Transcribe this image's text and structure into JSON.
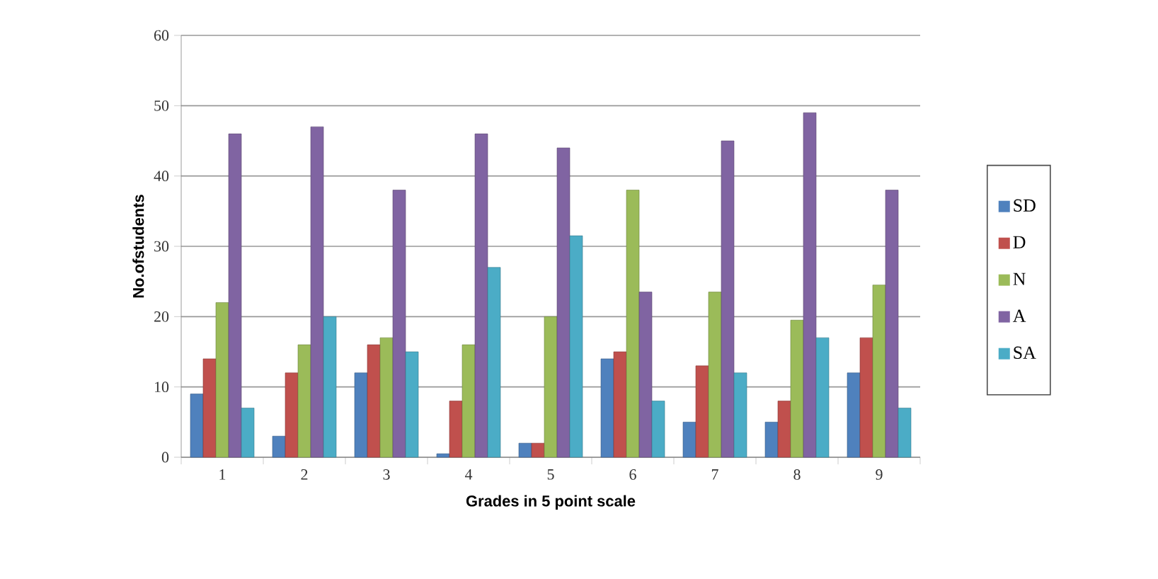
{
  "chart_data": {
    "type": "bar",
    "xlabel": "Grades in 5 point scale",
    "ylabel": "No.ofstudents",
    "categories": [
      "1",
      "2",
      "3",
      "4",
      "5",
      "6",
      "7",
      "8",
      "9"
    ],
    "series": [
      {
        "name": "SD",
        "color": "#4f81bd",
        "values": [
          9,
          3,
          12,
          0.5,
          2,
          14,
          5,
          5,
          12
        ]
      },
      {
        "name": "D",
        "color": "#c0504d",
        "values": [
          14,
          12,
          16,
          8,
          2,
          15,
          13,
          8,
          17
        ]
      },
      {
        "name": "N",
        "color": "#9bbb59",
        "values": [
          22,
          16,
          17,
          16,
          20,
          38,
          23.5,
          19.5,
          24.5
        ]
      },
      {
        "name": "A",
        "color": "#8064a2",
        "values": [
          46,
          47,
          38,
          46,
          44,
          23.5,
          45,
          49,
          38
        ]
      },
      {
        "name": "SA",
        "color": "#4bacc6",
        "values": [
          7,
          20,
          15,
          27,
          31.5,
          8,
          12,
          17,
          7
        ]
      }
    ],
    "ylim": [
      0,
      60
    ],
    "yticks": [
      0,
      10,
      20,
      30,
      40,
      50,
      60
    ],
    "grid": "y",
    "legend": "right"
  }
}
